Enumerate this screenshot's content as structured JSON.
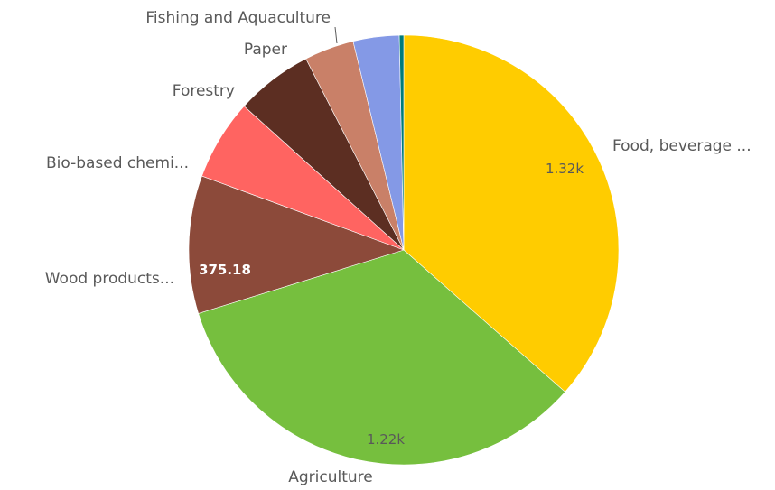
{
  "chart_data": {
    "type": "pie",
    "title": "",
    "categories": [
      "Food, beverage ...",
      "Agriculture",
      "Wood products...",
      "Bio-based chemi...",
      "Forestry",
      "Paper",
      "",
      "Fishing and Aquaculture"
    ],
    "values": [
      1320,
      1220,
      375.18,
      220,
      210,
      135,
      125,
      12
    ],
    "value_labels": [
      "1.32k",
      "1.22k",
      "375.18",
      "",
      "",
      "",
      "",
      ""
    ],
    "colors": [
      "#ffcc00",
      "#76bf3e",
      "#8c4a3a",
      "#ff6461",
      "#5c2e22",
      "#c98068",
      "#8499e6",
      "#007b7b",
      "#8e44ad"
    ],
    "legend": "none"
  }
}
